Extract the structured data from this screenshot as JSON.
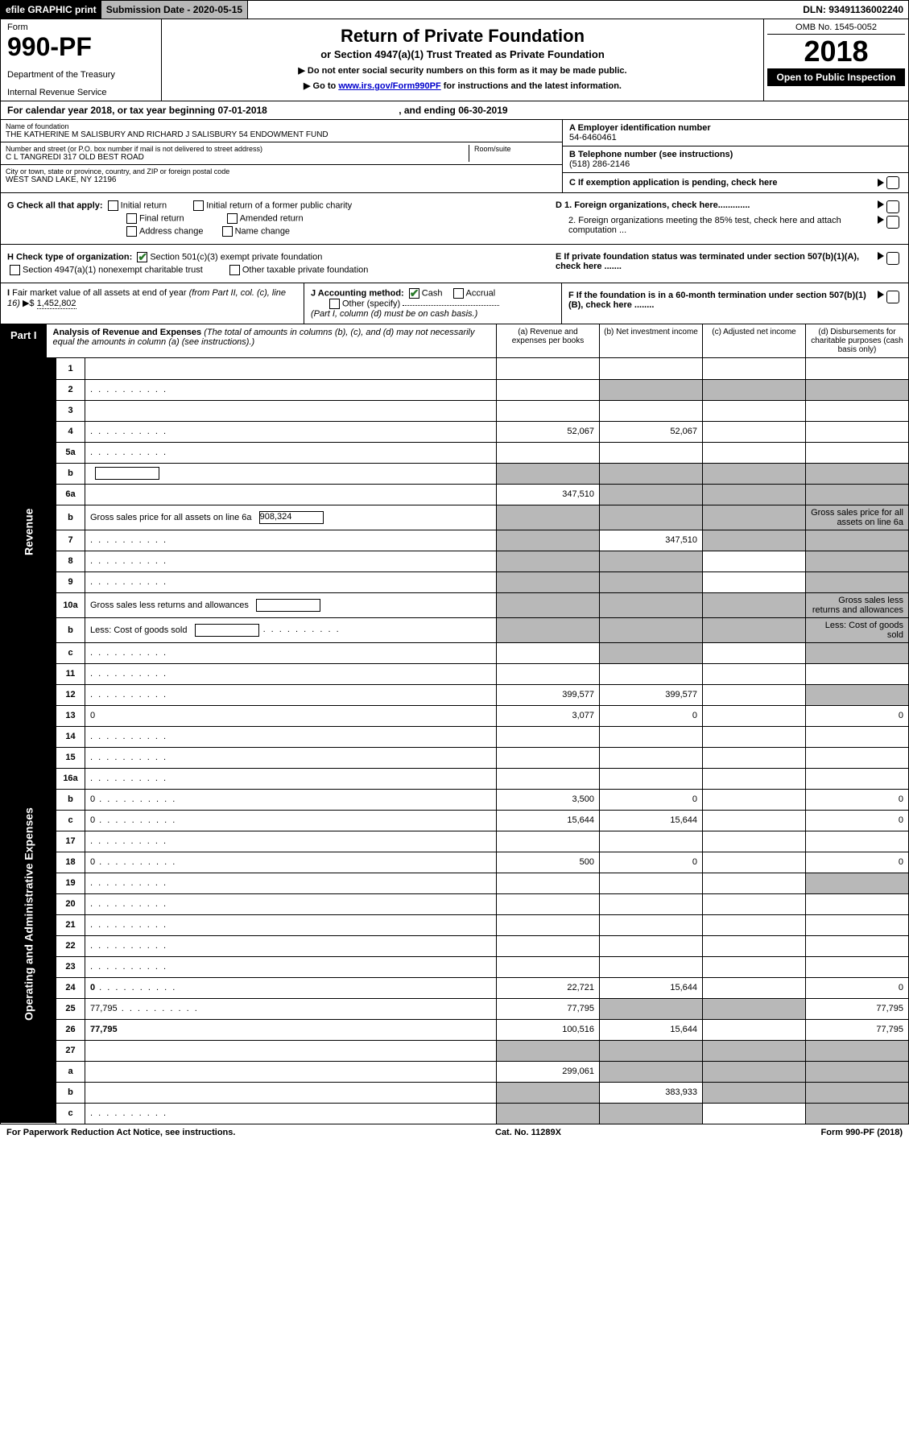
{
  "topbar": {
    "efile": "efile GRAPHIC print",
    "submission": "Submission Date - 2020-05-15",
    "dln": "DLN: 93491136002240"
  },
  "header": {
    "form_label": "Form",
    "form_num": "990-PF",
    "dept": "Department of the Treasury",
    "irs": "Internal Revenue Service",
    "title": "Return of Private Foundation",
    "subtitle": "or Section 4947(a)(1) Trust Treated as Private Foundation",
    "note1": "▶ Do not enter social security numbers on this form as it may be made public.",
    "note2_pre": "▶ Go to ",
    "note2_link": "www.irs.gov/Form990PF",
    "note2_post": " for instructions and the latest information.",
    "omb": "OMB No. 1545-0052",
    "year": "2018",
    "open": "Open to Public Inspection"
  },
  "cal": {
    "text_pre": "For calendar year 2018, or tax year beginning ",
    "begin": "07-01-2018",
    "text_mid": ", and ending ",
    "end": "06-30-2019"
  },
  "info": {
    "name_label": "Name of foundation",
    "name": "THE KATHERINE M SALISBURY AND RICHARD J SALISBURY 54 ENDOWMENT FUND",
    "addr_label": "Number and street (or P.O. box number if mail is not delivered to street address)",
    "addr": "C L TANGREDI 317 OLD BEST ROAD",
    "room_label": "Room/suite",
    "city_label": "City or town, state or province, country, and ZIP or foreign postal code",
    "city": "WEST SAND LAKE, NY  12196",
    "ein_label": "A Employer identification number",
    "ein": "54-6460461",
    "phone_label": "B Telephone number (see instructions)",
    "phone": "(518) 286-2146",
    "c_label": "C If exemption application is pending, check here",
    "d1": "D 1. Foreign organizations, check here.............",
    "d2": "2. Foreign organizations meeting the 85% test, check here and attach computation ...",
    "e": "E  If private foundation status was terminated under section 507(b)(1)(A), check here .......",
    "f": "F  If the foundation is in a 60-month termination under section 507(b)(1)(B), check here ........"
  },
  "g": {
    "label": "G Check all that apply:",
    "opts": [
      "Initial return",
      "Initial return of a former public charity",
      "Final return",
      "Amended return",
      "Address change",
      "Name change"
    ]
  },
  "h": {
    "label": "H Check type of organization:",
    "opt1": "Section 501(c)(3) exempt private foundation",
    "opt2": "Section 4947(a)(1) nonexempt charitable trust",
    "opt3": "Other taxable private foundation"
  },
  "i": {
    "label": "I Fair market value of all assets at end of year (from Part II, col. (c), line 16) ▶$",
    "val": "1,452,802"
  },
  "j": {
    "label": "J Accounting method:",
    "cash": "Cash",
    "accrual": "Accrual",
    "other": "Other (specify)",
    "note": "(Part I, column (d) must be on cash basis.)"
  },
  "part1": {
    "label": "Part I",
    "title": "Analysis of Revenue and Expenses",
    "desc": "(The total of amounts in columns (b), (c), and (d) may not necessarily equal the amounts in column (a) (see instructions).)",
    "col_a": "(a)    Revenue and expenses per books",
    "col_b": "(b)   Net investment income",
    "col_c": "(c)   Adjusted net income",
    "col_d": "(d)   Disbursements for charitable purposes (cash basis only)"
  },
  "sides": {
    "revenue": "Revenue",
    "opex": "Operating and Administrative Expenses"
  },
  "lines": [
    {
      "n": "1",
      "d": "",
      "a": "",
      "b": "",
      "c": ""
    },
    {
      "n": "2",
      "d": "",
      "dots": true,
      "a": "",
      "b": "",
      "c": "",
      "shade_bcd": true
    },
    {
      "n": "3",
      "d": "",
      "a": "",
      "b": "",
      "c": ""
    },
    {
      "n": "4",
      "d": "",
      "dots": true,
      "a": "52,067",
      "b": "52,067",
      "c": ""
    },
    {
      "n": "5a",
      "d": "",
      "dots": true,
      "a": "",
      "b": "",
      "c": ""
    },
    {
      "n": "b",
      "d": "",
      "box": true,
      "a": "",
      "b": "",
      "c": "",
      "shade_all": true
    },
    {
      "n": "6a",
      "d": "",
      "a": "347,510",
      "b": "",
      "c": "",
      "shade_bcd": true
    },
    {
      "n": "b",
      "d": "Gross sales price for all assets on line 6a",
      "box": true,
      "box_val": "908,324",
      "shade_all": true
    },
    {
      "n": "7",
      "d": "",
      "dots": true,
      "a": "",
      "b": "347,510",
      "c": "",
      "shade_a": true,
      "shade_cd": true
    },
    {
      "n": "8",
      "d": "",
      "dots": true,
      "a": "",
      "b": "",
      "c": "",
      "shade_ab": true,
      "shade_d": true
    },
    {
      "n": "9",
      "d": "",
      "dots": true,
      "a": "",
      "b": "",
      "c": "",
      "shade_ab": true,
      "shade_d": true
    },
    {
      "n": "10a",
      "d": "Gross sales less returns and allowances",
      "box": true,
      "shade_all": true
    },
    {
      "n": "b",
      "d": "Less: Cost of goods sold",
      "dots": true,
      "box": true,
      "shade_all": true
    },
    {
      "n": "c",
      "d": "",
      "dots": true,
      "a": "",
      "b": "",
      "c": "",
      "shade_b": true,
      "shade_d": true
    },
    {
      "n": "11",
      "d": "",
      "dots": true,
      "a": "",
      "b": "",
      "c": ""
    },
    {
      "n": "12",
      "d": "",
      "dots": true,
      "bold": true,
      "a": "399,577",
      "b": "399,577",
      "c": "",
      "shade_d": true
    },
    {
      "n": "13",
      "d": "0",
      "a": "3,077",
      "b": "0",
      "c": ""
    },
    {
      "n": "14",
      "d": "",
      "dots": true,
      "a": "",
      "b": "",
      "c": ""
    },
    {
      "n": "15",
      "d": "",
      "dots": true,
      "a": "",
      "b": "",
      "c": ""
    },
    {
      "n": "16a",
      "d": "",
      "dots": true,
      "a": "",
      "b": "",
      "c": ""
    },
    {
      "n": "b",
      "d": "0",
      "dots": true,
      "a": "3,500",
      "b": "0",
      "c": ""
    },
    {
      "n": "c",
      "d": "0",
      "dots": true,
      "a": "15,644",
      "b": "15,644",
      "c": ""
    },
    {
      "n": "17",
      "d": "",
      "dots": true,
      "a": "",
      "b": "",
      "c": ""
    },
    {
      "n": "18",
      "d": "0",
      "dots": true,
      "a": "500",
      "b": "0",
      "c": ""
    },
    {
      "n": "19",
      "d": "",
      "dots": true,
      "a": "",
      "b": "",
      "c": "",
      "shade_d": true
    },
    {
      "n": "20",
      "d": "",
      "dots": true,
      "a": "",
      "b": "",
      "c": ""
    },
    {
      "n": "21",
      "d": "",
      "dots": true,
      "a": "",
      "b": "",
      "c": ""
    },
    {
      "n": "22",
      "d": "",
      "dots": true,
      "a": "",
      "b": "",
      "c": ""
    },
    {
      "n": "23",
      "d": "",
      "dots": true,
      "a": "",
      "b": "",
      "c": ""
    },
    {
      "n": "24",
      "d": "0",
      "dots": true,
      "bold": true,
      "a": "22,721",
      "b": "15,644",
      "c": ""
    },
    {
      "n": "25",
      "d": "77,795",
      "dots": true,
      "a": "77,795",
      "b": "",
      "c": "",
      "shade_bc": true
    },
    {
      "n": "26",
      "d": "77,795",
      "bold": true,
      "a": "100,516",
      "b": "15,644",
      "c": ""
    },
    {
      "n": "27",
      "d": "",
      "a": "",
      "b": "",
      "c": "",
      "shade_all": true
    },
    {
      "n": "a",
      "d": "",
      "bold": true,
      "a": "299,061",
      "b": "",
      "c": "",
      "shade_bcd": true
    },
    {
      "n": "b",
      "d": "",
      "bold": true,
      "a": "",
      "b": "383,933",
      "c": "",
      "shade_a": true,
      "shade_cd": true
    },
    {
      "n": "c",
      "d": "",
      "dots": true,
      "bold": true,
      "a": "",
      "b": "",
      "c": "",
      "shade_ab": true,
      "shade_d": true
    }
  ],
  "footer": {
    "left": "For Paperwork Reduction Act Notice, see instructions.",
    "mid": "Cat. No. 11289X",
    "right": "Form 990-PF (2018)"
  }
}
